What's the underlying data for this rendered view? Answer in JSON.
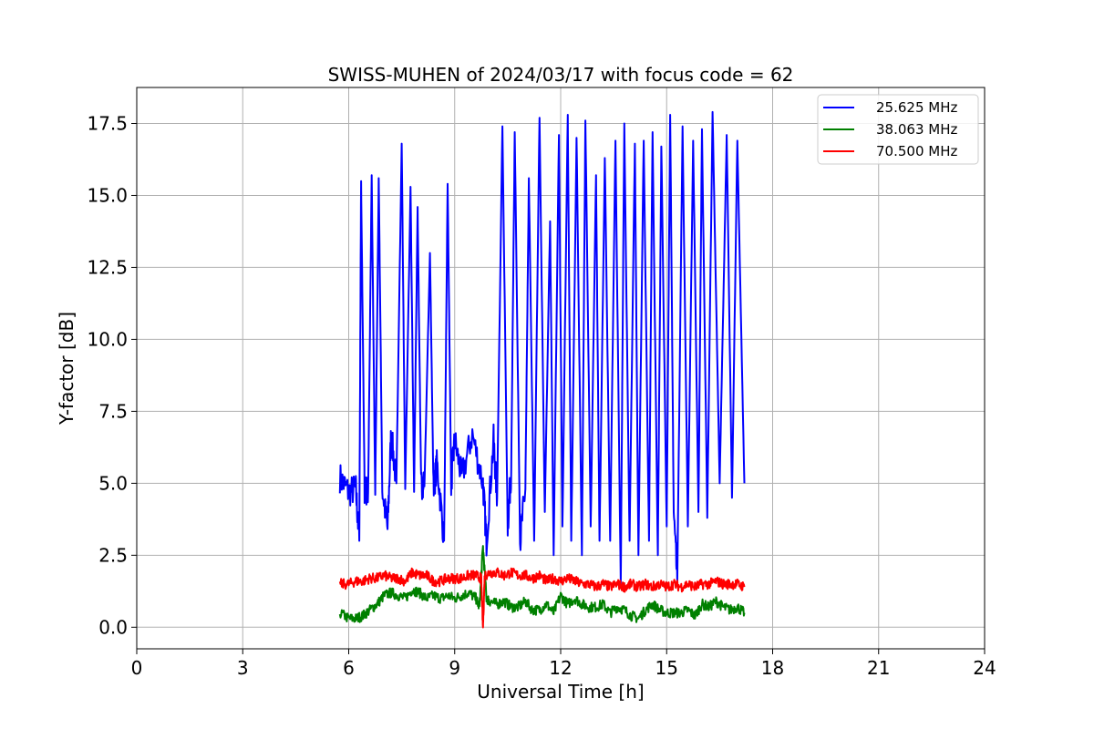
{
  "chart_data": {
    "type": "line",
    "title": "SWISS-MUHEN of 2024/03/17 with focus code = 62",
    "xlabel": "Universal Time [h]",
    "ylabel": "Y-factor [dB]",
    "xlim": [
      0,
      24
    ],
    "ylim": [
      -0.75,
      18.75
    ],
    "xticks": [
      0,
      3,
      6,
      9,
      12,
      15,
      18,
      21,
      24
    ],
    "xtick_labels": [
      "0",
      "3",
      "6",
      "9",
      "12",
      "15",
      "18",
      "21",
      "24"
    ],
    "yticks": [
      0,
      2.5,
      5,
      7.5,
      10,
      12.5,
      15,
      17.5
    ],
    "ytick_labels": [
      "0.0",
      "2.5",
      "5.0",
      "7.5",
      "10.0",
      "12.5",
      "15.0",
      "17.5"
    ],
    "grid": true,
    "legend_position": "top-right",
    "series": [
      {
        "name": "25.625 MHz",
        "color": "#0000ff",
        "x": [
          5.75,
          6.0,
          6.2,
          6.3,
          6.35,
          6.45,
          6.55,
          6.65,
          6.75,
          6.85,
          6.95,
          7.1,
          7.2,
          7.35,
          7.5,
          7.6,
          7.75,
          7.85,
          7.95,
          8.05,
          8.15,
          8.3,
          8.4,
          8.5,
          8.7,
          8.8,
          8.9,
          9.0,
          9.2,
          9.5,
          9.8,
          9.9,
          10.1,
          10.2,
          10.35,
          10.5,
          10.6,
          10.7,
          10.85,
          11.0,
          11.1,
          11.25,
          11.4,
          11.55,
          11.7,
          11.8,
          11.95,
          12.05,
          12.2,
          12.3,
          12.45,
          12.6,
          12.7,
          12.85,
          13.0,
          13.1,
          13.25,
          13.4,
          13.55,
          13.7,
          13.8,
          13.95,
          14.1,
          14.2,
          14.35,
          14.5,
          14.6,
          14.75,
          14.85,
          15.0,
          15.1,
          15.2,
          15.3,
          15.45,
          15.6,
          15.75,
          15.9,
          16.0,
          16.15,
          16.3,
          16.5,
          16.7,
          16.85,
          17.0,
          17.2
        ],
        "values": [
          5.2,
          4.7,
          4.8,
          3.0,
          15.5,
          4.8,
          4.7,
          15.7,
          4.6,
          15.6,
          4.8,
          3.4,
          6.7,
          5.0,
          16.8,
          4.8,
          15.3,
          4.7,
          14.6,
          4.9,
          5.2,
          13.0,
          4.8,
          5.7,
          3.0,
          15.4,
          5.0,
          6.5,
          5.2,
          6.7,
          5.0,
          3.0,
          6.5,
          4.5,
          17.4,
          3.5,
          5.5,
          17.2,
          3.0,
          4.8,
          15.6,
          3.0,
          17.7,
          4.0,
          14.1,
          2.5,
          17.1,
          3.5,
          17.8,
          3.0,
          17.0,
          2.5,
          17.6,
          3.5,
          15.7,
          3.0,
          16.3,
          3.0,
          16.9,
          1.5,
          17.5,
          3.0,
          16.8,
          2.5,
          16.9,
          3.0,
          17.2,
          2.5,
          16.7,
          3.5,
          17.8,
          4.0,
          1.5,
          17.4,
          3.5,
          16.9,
          4.0,
          17.3,
          3.8,
          17.9,
          5.0,
          17.1,
          4.5,
          16.9,
          5.0
        ]
      },
      {
        "name": "38.063 MHz",
        "color": "#008000",
        "x": [
          5.75,
          6.0,
          6.2,
          6.4,
          6.6,
          6.8,
          7.0,
          7.2,
          7.4,
          7.6,
          7.8,
          8.0,
          8.2,
          8.4,
          8.6,
          8.8,
          9.0,
          9.2,
          9.4,
          9.6,
          9.7,
          9.8,
          9.9,
          10.0,
          10.2,
          10.4,
          10.6,
          10.8,
          11.0,
          11.2,
          11.4,
          11.6,
          11.8,
          12.0,
          12.2,
          12.4,
          12.6,
          12.8,
          13.0,
          13.2,
          13.4,
          13.6,
          13.8,
          14.0,
          14.2,
          14.4,
          14.6,
          14.8,
          15.0,
          15.2,
          15.4,
          15.6,
          15.8,
          16.0,
          16.2,
          16.4,
          16.6,
          16.8,
          17.0,
          17.2
        ],
        "values": [
          0.5,
          0.3,
          0.3,
          0.4,
          0.6,
          0.8,
          1.1,
          1.2,
          1.1,
          1.0,
          1.3,
          1.2,
          1.0,
          1.1,
          1.0,
          1.1,
          1.0,
          1.1,
          1.2,
          1.0,
          0.7,
          2.8,
          1.0,
          0.9,
          0.8,
          0.9,
          0.7,
          0.7,
          0.9,
          0.6,
          0.6,
          0.8,
          0.5,
          1.1,
          0.8,
          1.0,
          0.8,
          0.7,
          0.7,
          0.8,
          0.5,
          0.7,
          0.6,
          0.4,
          0.3,
          0.6,
          0.8,
          0.6,
          0.5,
          0.5,
          0.5,
          0.6,
          0.4,
          0.8,
          0.7,
          0.9,
          0.7,
          0.6,
          0.7,
          0.5
        ]
      },
      {
        "name": "70.500 MHz",
        "color": "#ff0000",
        "x": [
          5.75,
          6.0,
          6.2,
          6.4,
          6.6,
          6.8,
          7.0,
          7.2,
          7.4,
          7.6,
          7.8,
          8.0,
          8.2,
          8.4,
          8.6,
          8.8,
          9.0,
          9.2,
          9.4,
          9.6,
          9.75,
          9.8,
          9.85,
          10.0,
          10.2,
          10.4,
          10.6,
          10.8,
          11.0,
          11.2,
          11.4,
          11.6,
          11.8,
          12.0,
          12.2,
          12.4,
          12.6,
          12.8,
          13.0,
          13.2,
          13.4,
          13.6,
          13.8,
          14.0,
          14.2,
          14.4,
          14.6,
          14.8,
          15.0,
          15.2,
          15.4,
          15.6,
          15.8,
          16.0,
          16.2,
          16.4,
          16.6,
          16.8,
          17.0,
          17.2
        ],
        "values": [
          1.5,
          1.5,
          1.6,
          1.6,
          1.7,
          1.7,
          1.8,
          1.7,
          1.7,
          1.6,
          1.9,
          1.8,
          1.8,
          1.6,
          1.6,
          1.7,
          1.7,
          1.7,
          1.8,
          1.8,
          1.7,
          0.0,
          1.8,
          1.9,
          1.9,
          1.8,
          1.9,
          1.8,
          1.8,
          1.7,
          1.8,
          1.6,
          1.7,
          1.6,
          1.7,
          1.6,
          1.5,
          1.5,
          1.4,
          1.5,
          1.4,
          1.5,
          1.4,
          1.5,
          1.4,
          1.5,
          1.4,
          1.5,
          1.4,
          1.5,
          1.4,
          1.5,
          1.4,
          1.5,
          1.5,
          1.6,
          1.5,
          1.5,
          1.5,
          1.4
        ]
      }
    ]
  }
}
